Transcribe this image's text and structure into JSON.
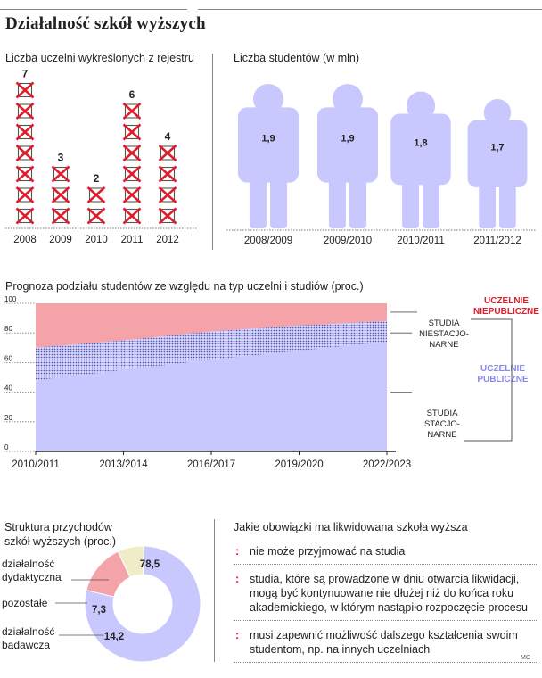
{
  "title": "Działalność szkół wyższych",
  "colors": {
    "red": "#e11d2b",
    "purple": "#c8c8ff",
    "pink": "#f4a3a9",
    "dots": "#5a5ab4",
    "cream": "#f1ecc8",
    "grid": "#777"
  },
  "chart_data": [
    {
      "id": "removed",
      "type": "bar",
      "title": "Liczba uczelni wykreślonych z rejestru",
      "categories": [
        "2008",
        "2009",
        "2010",
        "2011",
        "2012"
      ],
      "values": [
        7,
        3,
        2,
        6,
        4
      ],
      "icon": "crossed-box-icon"
    },
    {
      "id": "students",
      "type": "bar",
      "title": "Liczba studentów (w mln)",
      "categories": [
        "2008/2009",
        "2009/2010",
        "2010/2011",
        "2011/2012"
      ],
      "values": [
        1.9,
        1.9,
        1.8,
        1.7
      ],
      "value_labels": [
        "1,9",
        "1,9",
        "1,8",
        "1,7"
      ],
      "icon": "student-figure-icon"
    },
    {
      "id": "forecast",
      "type": "area",
      "title": "Prognoza podziału studentów ze względu na typ uczelni i studiów (proc.)",
      "x": [
        "2010/2011",
        "2013/2014",
        "2016/2017",
        "2019/2020",
        "2022/2023"
      ],
      "ylim": [
        0,
        100
      ],
      "yticks": [
        0,
        20,
        40,
        60,
        80,
        100
      ],
      "series": [
        {
          "name": "STUDIA STACJONARNE",
          "group": "UCZELNIE PUBLICZNE",
          "values": [
            48,
            55,
            62,
            68,
            74
          ]
        },
        {
          "name": "STUDIA NIESTACJONARNE",
          "group": "UCZELNIE PUBLICZNE",
          "values": [
            22,
            20,
            19,
            17,
            14
          ]
        },
        {
          "name": "UCZELNIE NIEPUBLICZNE",
          "values": [
            30,
            25,
            19,
            15,
            12
          ]
        }
      ],
      "labels": {
        "private": [
          "UCZELNIE",
          "NIEPUBLICZNE"
        ],
        "public": [
          "UCZELNIE",
          "PUBLICZNE"
        ],
        "parttime": [
          "STUDIA",
          "NIESTACJO-",
          "NARNE"
        ],
        "fulltime": [
          "STUDIA",
          "STACJO-",
          "NARNE"
        ]
      }
    },
    {
      "id": "revenue",
      "type": "pie",
      "title": "Struktura przychodów szkół wyższych (proc.)",
      "title_lines": [
        "Struktura przychodów",
        "szkół wyższych (proc.)"
      ],
      "slices": [
        {
          "label": "działalność dydaktyczna",
          "label_lines": [
            "działalność",
            "dydaktyczna"
          ],
          "value": 78.5,
          "value_label": "78,5"
        },
        {
          "label": "działalność badawcza",
          "label_lines": [
            "działalność",
            "badawcza"
          ],
          "value": 14.2,
          "value_label": "14,2"
        },
        {
          "label": "pozostałe",
          "label_lines": [
            "pozostałe"
          ],
          "value": 7.3,
          "value_label": "7,3"
        }
      ]
    }
  ],
  "obligations": {
    "title": "Jakie obowiązki ma likwidowana szkoła wyższa",
    "items": [
      {
        "lines": [
          "nie może przyjmować na studia"
        ]
      },
      {
        "lines": [
          "studia, które są prowadzone w dniu otwarcia likwidacji,",
          "mogą być kontynuowane nie dłużej niż do końca roku",
          "akademickiego, w którym nastąpiło rozpoczęcie procesu"
        ]
      },
      {
        "lines": [
          "musi zapewnić możliwość dalszego kształcenia swoim",
          "studentom, np. na innych uczelniach"
        ]
      }
    ]
  },
  "credit": "MC"
}
